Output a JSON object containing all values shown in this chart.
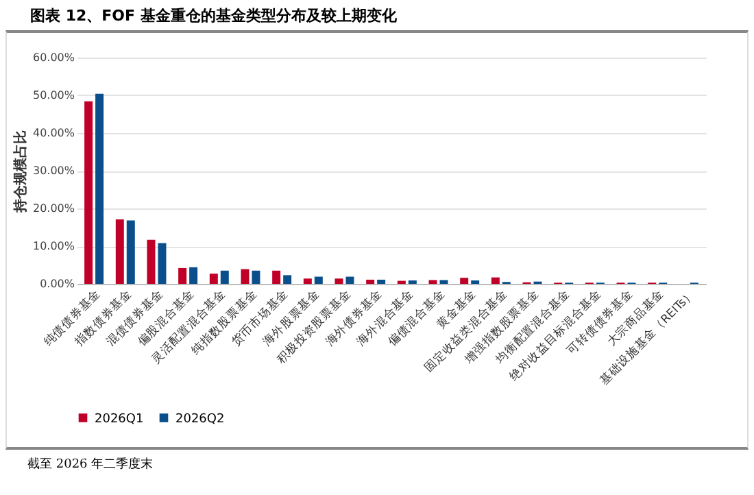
{
  "chart_data": {
    "type": "bar",
    "title": "图表 12、FOF 基金重仓的基金类型分布及较上期变化",
    "ylabel": "持仓规模占比",
    "categories": [
      "纯债债券基金",
      "指数债券基金",
      "混债债券基金",
      "偏股混合基金",
      "灵活配置混合基金",
      "纯指数股票基金",
      "货币市场基金",
      "海外股票基金",
      "积极投资股票基金",
      "海外债券基金",
      "海外混合基金",
      "偏债混合基金",
      "黄金基金",
      "固定收益类混合基金",
      "增强指数股票基金",
      "均衡配置混合基金",
      "绝对收益目标混合基金",
      "可转债债券基金",
      "大宗商品基金",
      "基础设施基金（REITs）"
    ],
    "series": [
      {
        "name": "2026Q1",
        "color": "#c00028",
        "values": [
          48.4,
          17.1,
          11.7,
          4.2,
          2.7,
          3.9,
          3.5,
          1.4,
          1.4,
          1.1,
          0.8,
          1.0,
          1.6,
          1.7,
          0.4,
          0.3,
          0.3,
          0.3,
          0.3,
          null
        ]
      },
      {
        "name": "2026Q2",
        "color": "#0a4f8c",
        "values": [
          50.4,
          16.8,
          10.8,
          4.4,
          3.5,
          3.5,
          2.3,
          1.9,
          1.9,
          1.1,
          0.9,
          1.0,
          0.9,
          0.5,
          0.6,
          0.3,
          0.3,
          0.3,
          0.3,
          0.3
        ]
      }
    ],
    "ylim": [
      0,
      60
    ],
    "yticks": [
      {
        "value": 0,
        "label": "0.00%"
      },
      {
        "value": 10,
        "label": "10.00%"
      },
      {
        "value": 20,
        "label": "20.00%"
      },
      {
        "value": 30,
        "label": "30.00%"
      },
      {
        "value": 40,
        "label": "40.00%"
      },
      {
        "value": 50,
        "label": "50.00%"
      },
      {
        "value": 60,
        "label": "60.00%"
      }
    ],
    "grid": "y",
    "legend": "bottom",
    "annotations": [
      "截至 2026 年二季度末"
    ]
  }
}
